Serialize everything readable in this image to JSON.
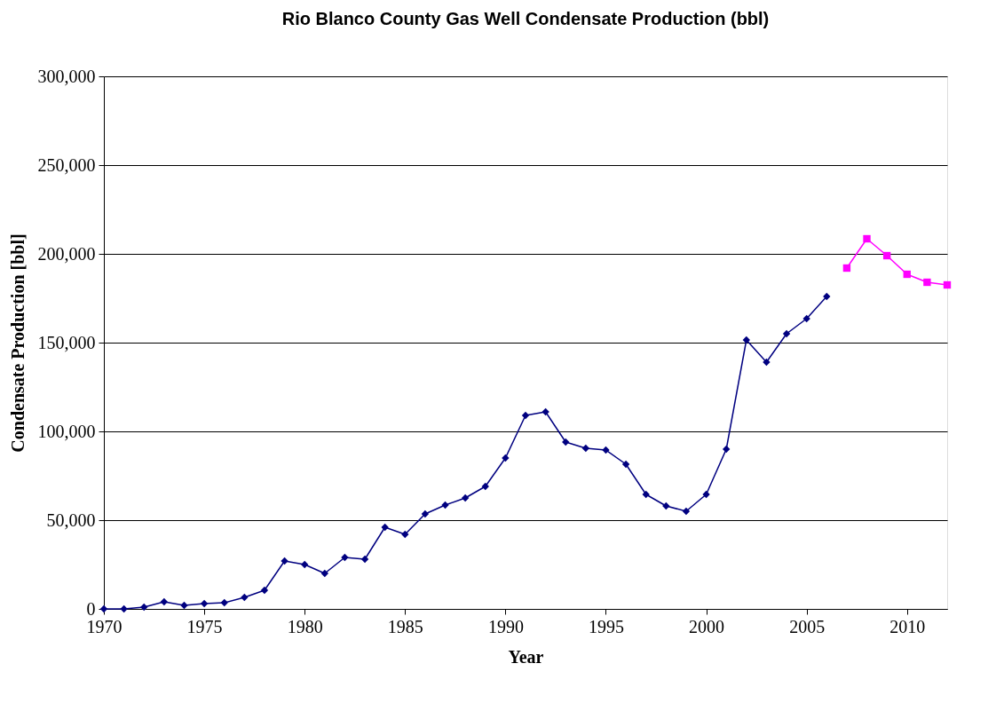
{
  "chart_data": {
    "type": "line",
    "title": "Rio Blanco County Gas Well Condensate Production (bbl)",
    "xlabel": "Year",
    "ylabel": "Condensate Production [bbl]",
    "xlim": [
      1970,
      2012
    ],
    "xticks": [
      1970,
      1975,
      1980,
      1985,
      1990,
      1995,
      2000,
      2005,
      2010
    ],
    "ylim": [
      0,
      300000
    ],
    "yticks": [
      {
        "value": 0,
        "label": "0"
      },
      {
        "value": 50000,
        "label": "50,000"
      },
      {
        "value": 100000,
        "label": "100,000"
      },
      {
        "value": 150000,
        "label": "150,000"
      },
      {
        "value": 200000,
        "label": "200,000"
      },
      {
        "value": 250000,
        "label": "250,000"
      },
      {
        "value": 300000,
        "label": "300,000"
      }
    ],
    "grid": "y",
    "series": [
      {
        "color": "#000080",
        "marker": "diamond",
        "x": [
          1970,
          1971,
          1972,
          1973,
          1974,
          1975,
          1976,
          1977,
          1978,
          1979,
          1980,
          1981,
          1982,
          1983,
          1984,
          1985,
          1986,
          1987,
          1988,
          1989,
          1990,
          1991,
          1992,
          1993,
          1994,
          1995,
          1996,
          1997,
          1998,
          1999,
          2000,
          2001,
          2002,
          2003,
          2004,
          2005,
          2006
        ],
        "values": [
          0,
          0,
          1000,
          4000,
          2000,
          3000,
          3500,
          6500,
          10500,
          27000,
          25000,
          20000,
          29000,
          28000,
          46000,
          42000,
          53500,
          58500,
          62500,
          69000,
          85000,
          109000,
          111000,
          94000,
          90500,
          89500,
          81500,
          64500,
          58000,
          55000,
          64500,
          90000,
          151500,
          139000,
          155000,
          163500,
          176000
        ]
      },
      {
        "color": "#ff00ff",
        "marker": "square",
        "x": [
          2007,
          2008,
          2009,
          2010,
          2011,
          2012
        ],
        "values": [
          192000,
          208500,
          199000,
          188500,
          184000,
          182500
        ]
      }
    ]
  }
}
